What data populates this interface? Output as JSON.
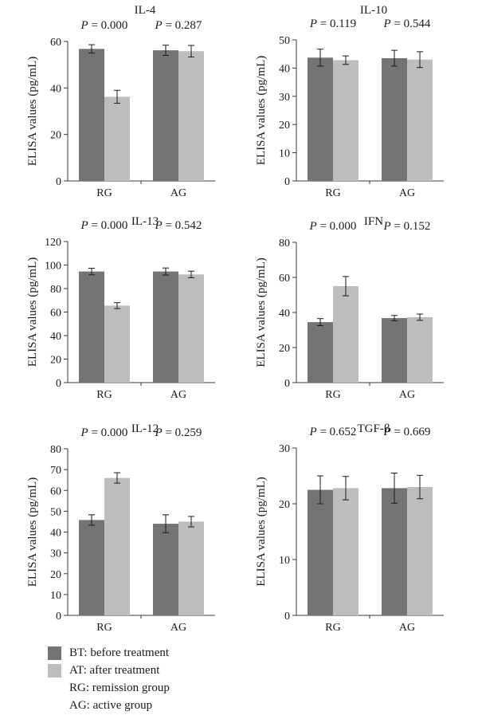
{
  "colors": {
    "bt": "#747474",
    "at": "#bdbdbd",
    "axis": "#3a3a3a"
  },
  "legend": {
    "items": [
      {
        "key": "bt",
        "label": "BT: before treatment"
      },
      {
        "key": "at",
        "label": "AT: after treatment"
      },
      {
        "key": "",
        "label": "RG: remission group"
      },
      {
        "key": "",
        "label": "AG: active group"
      }
    ]
  },
  "chart_data": [
    {
      "type": "bar",
      "title": "IL-4",
      "ylabel": "ELISA values (pg/mL)",
      "ylim": [
        0,
        60
      ],
      "yticks": [
        0,
        20,
        40,
        60
      ],
      "categories": [
        "RG",
        "AG"
      ],
      "pvalue_labels": [
        "P = 0.000",
        "P = 0.287"
      ],
      "series": [
        {
          "key": "bt",
          "values": [
            56.8,
            56.2
          ],
          "errors": [
            1.8,
            2.2
          ]
        },
        {
          "key": "at",
          "values": [
            36.2,
            55.8
          ],
          "errors": [
            2.8,
            2.5
          ]
        }
      ]
    },
    {
      "type": "bar",
      "title": "IL-10",
      "ylabel": "ELISA values (pg/mL)",
      "ylim": [
        0,
        50
      ],
      "yticks": [
        0,
        10,
        20,
        30,
        40,
        50
      ],
      "categories": [
        "RG",
        "AG"
      ],
      "pvalue_labels": [
        "P = 0.119",
        "P = 0.544"
      ],
      "series": [
        {
          "key": "bt",
          "values": [
            43.7,
            43.5
          ],
          "errors": [
            3.0,
            2.8
          ]
        },
        {
          "key": "at",
          "values": [
            42.8,
            43.0
          ],
          "errors": [
            1.5,
            2.8
          ]
        }
      ]
    },
    {
      "type": "bar",
      "title": "IL-13",
      "ylabel": "ELISA values (pg/mL)",
      "ylim": [
        0,
        120
      ],
      "yticks": [
        0,
        20,
        40,
        60,
        80,
        100,
        120
      ],
      "categories": [
        "RG",
        "AG"
      ],
      "pvalue_labels": [
        "P = 0.000",
        "P = 0.542"
      ],
      "series": [
        {
          "key": "bt",
          "values": [
            94.5,
            94.5
          ],
          "errors": [
            2.8,
            3.0
          ]
        },
        {
          "key": "at",
          "values": [
            65.5,
            92.0
          ],
          "errors": [
            2.5,
            2.8
          ]
        }
      ]
    },
    {
      "type": "bar",
      "title": "IFN",
      "ylabel": "ELISA values (pg/mL)",
      "ylim": [
        0,
        80
      ],
      "yticks": [
        0,
        20,
        40,
        60,
        80
      ],
      "categories": [
        "RG",
        "AG"
      ],
      "pvalue_labels": [
        "P = 0.000",
        "P = 0.152"
      ],
      "series": [
        {
          "key": "bt",
          "values": [
            34.5,
            36.8
          ],
          "errors": [
            2.0,
            1.5
          ]
        },
        {
          "key": "at",
          "values": [
            55.0,
            37.3
          ],
          "errors": [
            5.5,
            1.8
          ]
        }
      ]
    },
    {
      "type": "bar",
      "title": "IL-12",
      "ylabel": "ELISA values (pg/mL)",
      "ylim": [
        0,
        80
      ],
      "yticks": [
        0,
        10,
        20,
        30,
        40,
        50,
        60,
        70,
        80
      ],
      "categories": [
        "RG",
        "AG"
      ],
      "pvalue_labels": [
        "P = 0.000",
        "P = 0.259"
      ],
      "series": [
        {
          "key": "bt",
          "values": [
            45.8,
            44.0
          ],
          "errors": [
            2.5,
            4.3
          ]
        },
        {
          "key": "at",
          "values": [
            66.0,
            45.0
          ],
          "errors": [
            2.5,
            2.5
          ]
        }
      ]
    },
    {
      "type": "bar",
      "title": "TGF-β",
      "ylabel": "ELISA values (pg/mL)",
      "ylim": [
        0,
        30
      ],
      "yticks": [
        0,
        10,
        20,
        30
      ],
      "categories": [
        "RG",
        "AG"
      ],
      "pvalue_labels": [
        "P = 0.652",
        "P = 0.669"
      ],
      "series": [
        {
          "key": "bt",
          "values": [
            22.5,
            22.8
          ],
          "errors": [
            2.5,
            2.7
          ]
        },
        {
          "key": "at",
          "values": [
            22.8,
            23.0
          ],
          "errors": [
            2.1,
            2.1
          ]
        }
      ]
    }
  ]
}
